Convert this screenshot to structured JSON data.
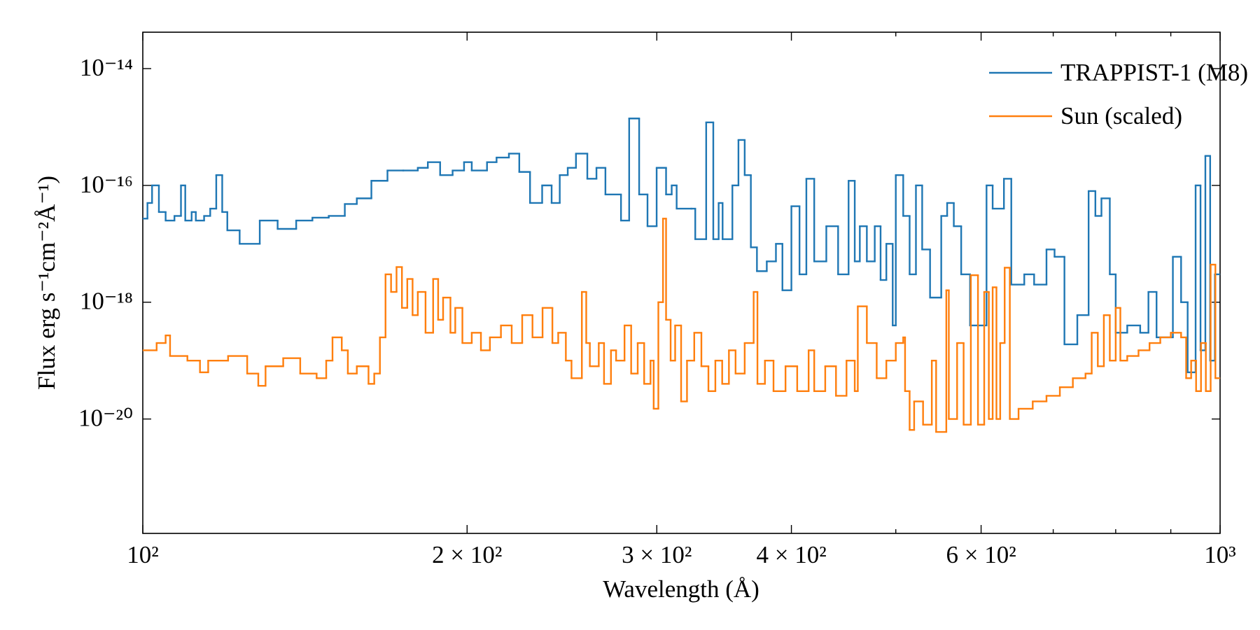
{
  "chart_data": {
    "type": "step",
    "xlabel": "Wavelength (Å)",
    "ylabel": "Flux erg s⁻¹cm⁻²Å⁻¹)",
    "xscale": "log",
    "yscale": "log",
    "legend": "upper right",
    "xlim": [
      100,
      1000
    ],
    "ylim": [
      1.1e-22,
      4.2e-14
    ],
    "xticks": [
      {
        "value": 100,
        "label": "10²"
      },
      {
        "value": 200,
        "label": "2 × 10²"
      },
      {
        "value": 300,
        "label": "3 × 10²"
      },
      {
        "value": 400,
        "label": "4 × 10²"
      },
      {
        "value": 600,
        "label": "6 × 10²"
      },
      {
        "value": 1000,
        "label": "10³"
      }
    ],
    "xminorticks": [
      500,
      700,
      800,
      900
    ],
    "yticks": [
      {
        "value": 1e-14,
        "label": "10⁻¹⁴"
      },
      {
        "value": 1e-16,
        "label": "10⁻¹⁶"
      },
      {
        "value": 1e-18,
        "label": "10⁻¹⁸"
      },
      {
        "value": 1e-20,
        "label": "10⁻²⁰"
      }
    ],
    "series": [
      {
        "name": "TRAPPIST-1 (M8)",
        "color": "#1f77b4",
        "x": [
          100,
          101,
          102,
          103.5,
          105,
          107,
          108.5,
          109.5,
          111,
          112,
          114,
          115.5,
          117,
          118.5,
          119.8,
          123,
          128.4,
          133.4,
          138.8,
          143.7,
          148.8,
          154,
          158,
          163,
          168.7,
          174.5,
          180,
          183.9,
          188.8,
          193.9,
          198.7,
          202,
          208.7,
          213,
          218.7,
          223.6,
          228.8,
          234.8,
          239.6,
          243.8,
          248,
          252.4,
          258.6,
          263.7,
          268.8,
          277.9,
          282.8,
          288.9,
          294.1,
          299.9,
          306,
          309.7,
          313,
          323,
          325.7,
          333.4,
          338.5,
          342.4,
          345.3,
          352.6,
          357.2,
          362,
          366.8,
          371.6,
          379.5,
          387,
          392.4,
          400,
          407,
          413,
          420,
          431,
          442,
          452,
          458,
          463,
          470,
          478,
          484,
          490,
          496.7,
          500,
          508,
          515,
          522,
          529,
          538,
          551,
          558,
          566,
          575,
          586,
          607,
          615,
          630,
          640,
          658,
          672,
          690,
          702,
          717,
          737,
          755,
          766,
          776,
          790,
          800,
          820,
          843,
          858,
          873,
          904,
          920,
          933,
          949,
          959,
          969,
          979,
          989
        ],
        "values": [
          2.7e-17,
          5e-17,
          1e-16,
          3.5e-17,
          2.5e-17,
          3e-17,
          1e-16,
          2.5e-17,
          3.5e-17,
          2.5e-17,
          3e-17,
          4e-17,
          1.5e-16,
          3.5e-17,
          1.7e-17,
          1e-17,
          2.5e-17,
          1.8e-17,
          2.5e-17,
          2.8e-17,
          3e-17,
          4.8e-17,
          6e-17,
          1.2e-16,
          1.8e-16,
          1.8e-16,
          2e-16,
          2.5e-16,
          1.5e-16,
          1.8e-16,
          2.5e-16,
          1.8e-16,
          2.5e-16,
          3e-16,
          3.5e-16,
          1.7e-16,
          5e-17,
          1e-16,
          5e-17,
          1.5e-16,
          2e-16,
          3.5e-16,
          1.3e-16,
          2e-16,
          7e-17,
          2.5e-17,
          1.4e-15,
          7e-17,
          2e-17,
          2e-16,
          7e-17,
          1e-16,
          4e-17,
          4e-17,
          1.2e-17,
          1.2e-15,
          1.2e-17,
          5e-17,
          1.2e-17,
          1e-16,
          6e-16,
          1.5e-16,
          8.7e-18,
          3.4e-18,
          5e-18,
          1e-17,
          1.6e-18,
          4.4e-17,
          3e-18,
          1.3e-16,
          5e-18,
          2e-17,
          3e-18,
          1.2e-16,
          5e-18,
          2e-17,
          5e-18,
          2e-17,
          2.4e-18,
          1e-17,
          4e-19,
          1.5e-16,
          3e-17,
          3e-18,
          1e-16,
          8e-18,
          1.2e-18,
          3e-17,
          5e-17,
          2e-17,
          3e-18,
          4e-19,
          1e-16,
          4e-17,
          1.3e-16,
          2e-18,
          3e-18,
          2e-18,
          8e-18,
          6e-18,
          1.9e-19,
          6e-19,
          8e-17,
          3e-17,
          6e-17,
          3e-18,
          3e-19,
          4e-19,
          3e-19,
          1.5e-18,
          2.5e-19,
          6e-18,
          1e-18,
          6.3e-20,
          1e-16,
          1.5e-19,
          3.2e-16,
          1e-19,
          3e-18
        ]
      },
      {
        "name": "Sun (scaled)",
        "color": "#ff7f0e",
        "x": [
          100,
          103,
          105,
          106,
          110,
          113,
          115,
          120,
          125,
          128,
          130,
          135,
          140,
          145,
          148,
          150,
          153,
          155,
          158,
          162,
          164,
          166,
          168,
          170,
          172,
          174,
          176,
          178,
          180,
          183,
          186,
          188,
          190,
          193,
          195,
          198,
          202,
          206,
          210,
          215,
          220,
          225,
          230,
          235,
          240,
          243,
          247,
          250,
          255.6,
          258,
          260,
          265,
          268,
          272,
          275,
          280,
          284,
          288,
          292,
          296,
          298,
          301,
          304,
          306,
          309,
          312,
          316,
          320,
          325,
          330,
          335,
          340,
          345,
          350,
          355,
          362,
          369,
          372,
          378,
          385,
          395,
          405,
          415,
          420,
          430,
          440,
          450,
          458,
          461,
          470,
          480,
          490,
          500,
          508,
          510,
          515,
          520,
          530,
          540,
          545,
          557,
          560,
          570,
          578,
          587,
          596,
          604,
          610,
          615,
          620,
          625,
          631,
          638,
          650,
          670,
          690,
          710,
          730,
          750,
          760,
          770,
          780,
          790,
          800,
          808,
          820,
          840,
          860,
          880,
          900,
          920,
          930,
          940,
          950,
          960,
          970,
          980,
          990
        ],
        "values": [
          1.5e-19,
          2e-19,
          2.7e-19,
          1.2e-19,
          1e-19,
          6.3e-20,
          1e-19,
          1.2e-19,
          6e-20,
          3.7e-20,
          8e-20,
          1.1e-19,
          6e-20,
          5e-20,
          1e-19,
          2.5e-19,
          1.5e-19,
          6e-20,
          8e-20,
          4e-20,
          6e-20,
          2.5e-19,
          3e-18,
          1.5e-18,
          4e-18,
          8e-19,
          2.5e-18,
          6e-19,
          1.5e-18,
          3e-19,
          2.5e-18,
          5e-19,
          1.2e-18,
          3e-19,
          8e-19,
          2e-19,
          3e-19,
          1.5e-19,
          2.5e-19,
          4e-19,
          2e-19,
          6e-19,
          2.5e-19,
          8e-19,
          2e-19,
          3e-19,
          1e-19,
          5e-20,
          1.5e-18,
          2e-19,
          8e-20,
          2e-19,
          4e-20,
          1.5e-19,
          1e-19,
          4e-19,
          6e-20,
          2e-19,
          4e-20,
          1e-19,
          1.5e-20,
          1e-18,
          2.7e-17,
          5e-19,
          1e-19,
          4e-19,
          2e-20,
          1e-19,
          3e-19,
          8e-20,
          3e-20,
          1e-19,
          4e-20,
          1.5e-19,
          6e-20,
          2e-19,
          1.5e-18,
          4e-20,
          1e-19,
          3e-20,
          8e-20,
          3e-20,
          1.5e-19,
          3e-20,
          8e-20,
          2.5e-20,
          1e-19,
          3e-20,
          8.5e-19,
          2e-19,
          5e-20,
          1e-19,
          2e-19,
          2.5e-19,
          3e-20,
          6.5e-21,
          2e-20,
          8e-21,
          1e-19,
          6e-21,
          1.6e-18,
          1e-20,
          2e-19,
          8e-21,
          2.9e-18,
          8e-21,
          1.5e-18,
          1e-20,
          1.8e-18,
          1e-20,
          2e-19,
          3.9e-18,
          1e-20,
          1.5e-20,
          2e-20,
          2.5e-20,
          3.5e-20,
          5e-20,
          6e-20,
          3e-19,
          8e-20,
          6e-19,
          1e-19,
          8e-19,
          1e-19,
          1.2e-19,
          1.5e-19,
          2e-19,
          2.5e-19,
          3e-19,
          2.5e-19,
          5e-20,
          1e-19,
          3e-20,
          2e-19,
          3e-20,
          4.4e-18,
          5e-20
        ]
      }
    ]
  }
}
